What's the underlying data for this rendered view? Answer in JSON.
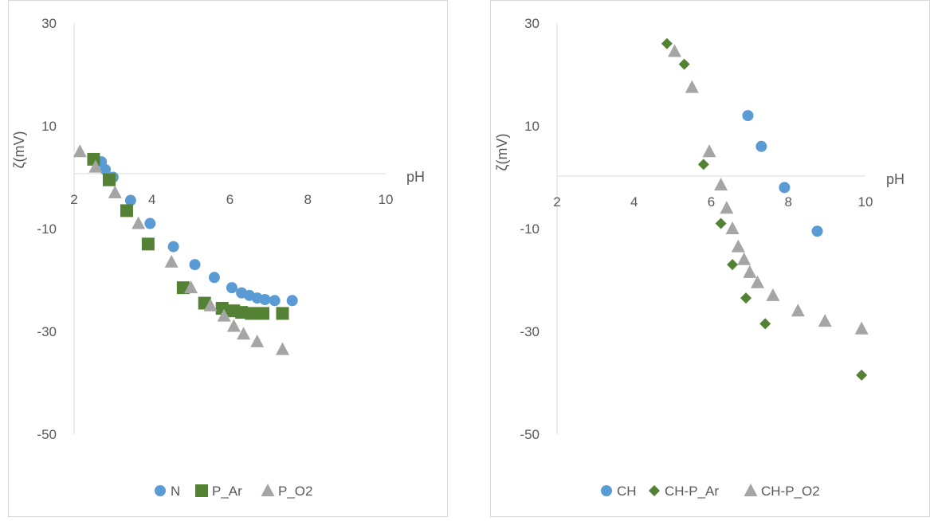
{
  "chart_data": [
    {
      "type": "scatter",
      "title": "",
      "xlabel": "pH",
      "ylabel": "ζ(mV)",
      "xlim": [
        2,
        10
      ],
      "ylim": [
        -50,
        30
      ],
      "x_ticks": [
        "2",
        "4",
        "6",
        "8",
        "10"
      ],
      "y_ticks": [
        "30",
        "10",
        "-10",
        "-30",
        "-50"
      ],
      "grid": false,
      "legend_position": "bottom",
      "series": [
        {
          "name": "N",
          "marker": "circle",
          "color": "#5B9BD5",
          "x": [
            2.7,
            2.8,
            3.0,
            3.45,
            3.95,
            4.55,
            5.1,
            5.6,
            6.05,
            6.3,
            6.5,
            6.7,
            6.9,
            7.15,
            7.6
          ],
          "y": [
            3,
            1.5,
            0,
            -4.5,
            -9,
            -13.5,
            -17,
            -19.5,
            -21.5,
            -22.5,
            -23,
            -23.5,
            -23.8,
            -24,
            -24
          ]
        },
        {
          "name": "P_Ar",
          "marker": "square",
          "color": "#548235",
          "x": [
            2.5,
            2.9,
            3.35,
            3.9,
            4.8,
            5.35,
            5.8,
            6.1,
            6.3,
            6.55,
            6.85,
            7.35
          ],
          "y": [
            3.5,
            -0.5,
            -6.5,
            -13,
            -21.5,
            -24.5,
            -25.5,
            -26,
            -26.3,
            -26.5,
            -26.5,
            -26.5
          ]
        },
        {
          "name": "P_O2",
          "marker": "triangle",
          "color": "#A5A5A5",
          "x": [
            2.15,
            2.55,
            3.05,
            3.65,
            4.5,
            5.0,
            5.5,
            5.85,
            6.1,
            6.35,
            6.7,
            7.35
          ],
          "y": [
            5,
            2,
            -3,
            -9,
            -16.5,
            -21.5,
            -25,
            -27,
            -29,
            -30.5,
            -32,
            -33.5
          ]
        }
      ]
    },
    {
      "type": "scatter",
      "title": "",
      "xlabel": "pH",
      "ylabel": "ζ(mV)",
      "xlim": [
        2,
        10
      ],
      "ylim": [
        -50,
        30
      ],
      "x_ticks": [
        "2",
        "4",
        "6",
        "8",
        "10"
      ],
      "y_ticks": [
        "30",
        "10",
        "-10",
        "-30",
        "-50"
      ],
      "grid": false,
      "legend_position": "bottom",
      "series": [
        {
          "name": "CH",
          "marker": "circle",
          "color": "#5B9BD5",
          "x": [
            6.95,
            7.3,
            7.9,
            8.75
          ],
          "y": [
            12,
            6,
            -2,
            -10.5
          ]
        },
        {
          "name": "CH-P_Ar",
          "marker": "diamond",
          "color": "#548235",
          "x": [
            4.85,
            5.3,
            5.8,
            6.25,
            6.55,
            6.9,
            7.4,
            9.9
          ],
          "y": [
            26,
            22,
            2.5,
            -9,
            -17,
            -23.5,
            -28.5,
            -38.5
          ]
        },
        {
          "name": "CH-P_O2",
          "marker": "triangle",
          "color": "#A5A5A5",
          "x": [
            5.05,
            5.5,
            5.95,
            6.25,
            6.4,
            6.55,
            6.7,
            6.85,
            7.0,
            7.2,
            7.6,
            8.25,
            8.95,
            9.9
          ],
          "y": [
            24.5,
            17.5,
            5,
            -1.5,
            -6,
            -10,
            -13.5,
            -16,
            -18.5,
            -20.5,
            -23,
            -26,
            -28,
            -29.5
          ]
        }
      ]
    }
  ]
}
